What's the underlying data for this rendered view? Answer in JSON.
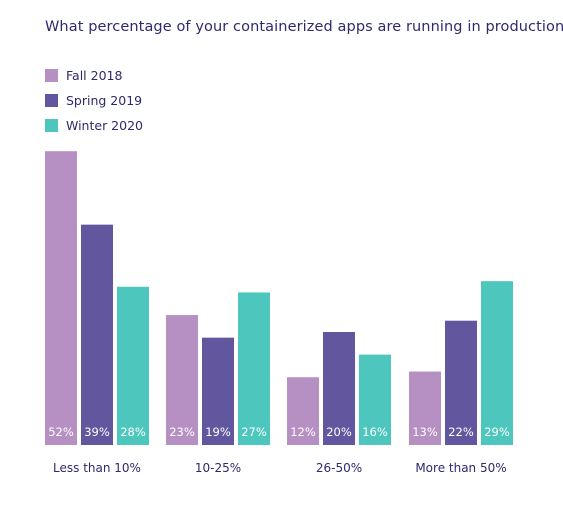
{
  "chart_data": {
    "type": "bar",
    "title": "What percentage of your containerized apps are running in production?",
    "categories": [
      "Less than 10%",
      "10-25%",
      "26-50%",
      "More than 50%"
    ],
    "series": [
      {
        "name": "Fall 2018",
        "color": "#b690c2",
        "values": [
          52,
          23,
          12,
          13
        ]
      },
      {
        "name": "Spring 2019",
        "color": "#62579e",
        "values": [
          39,
          19,
          20,
          22
        ]
      },
      {
        "name": "Winter 2020",
        "color": "#4dc7bd",
        "values": [
          28,
          27,
          16,
          29
        ]
      }
    ],
    "value_suffix": "%",
    "legend_position": "top-left",
    "grid": false
  }
}
